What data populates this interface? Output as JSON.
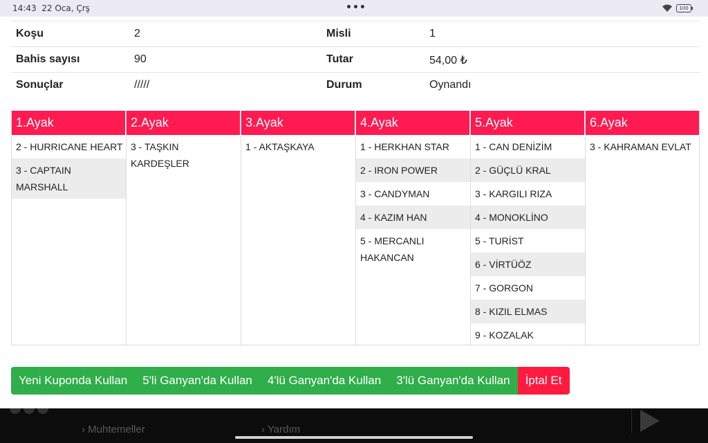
{
  "statusbar": {
    "time": "14:43",
    "date": "22 Oca, Çrş",
    "more": "•••",
    "battery": "100"
  },
  "info": [
    {
      "k1": "Koşu",
      "v1": "2",
      "k2": "Misli",
      "v2": "1"
    },
    {
      "k1": "Bahis sayısı",
      "v1": "90",
      "k2": "Tutar",
      "v2": "54,00 ₺"
    },
    {
      "k1": "Sonuçlar",
      "v1": "/////",
      "k2": "Durum",
      "v2": "Oynandı"
    }
  ],
  "legs": [
    {
      "title": "1.Ayak",
      "horses": [
        "2 - HURRICANE HEART",
        "3 - CAPTAIN MARSHALL"
      ]
    },
    {
      "title": "2.Ayak",
      "horses": [
        "3 - TAŞKIN KARDEŞLER"
      ]
    },
    {
      "title": "3.Ayak",
      "horses": [
        "1 - AKTAŞKAYA"
      ]
    },
    {
      "title": "4.Ayak",
      "horses": [
        "1 - HERKHAN STAR",
        "2 - IRON POWER",
        "3 - CANDYMAN",
        "4 - KAZIM HAN",
        "5 - MERCANLI HAKANCAN"
      ]
    },
    {
      "title": "5.Ayak",
      "horses": [
        "1 - CAN DENİZİM",
        "2 - GÜÇLÜ KRAL",
        "3 - KARGILI RIZA",
        "4 - MONOKLİNO",
        "5 - TURİST",
        "6 - VİRTÜÖZ",
        "7 - GORGON",
        "8 - KIZIL ELMAS",
        "9 - KOZALAK"
      ]
    },
    {
      "title": "6.Ayak",
      "horses": [
        "3 - KAHRAMAN EVLAT"
      ]
    }
  ],
  "actions": {
    "new_coupon": "Yeni Kuponda Kullan",
    "ganyan5": "5'li Ganyan'da Kullan",
    "ganyan4": "4'lü Ganyan'da Kullan",
    "ganyan3": "3'lü Ganyan'da Kullan",
    "cancel": "İptal Et"
  },
  "footer": {
    "link1": "Muhtemeller",
    "link2": "Yardım"
  },
  "colors": {
    "accent": "#ff1a52",
    "green": "#2fae49",
    "cancel": "#ff1a40"
  }
}
